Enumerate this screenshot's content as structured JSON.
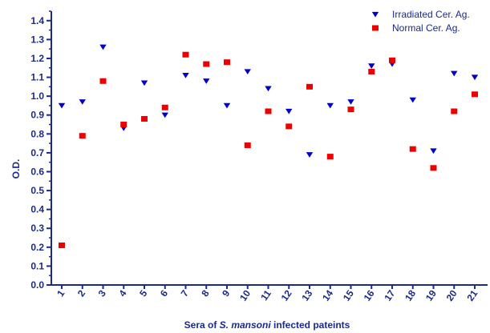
{
  "chart_data": {
    "type": "scatter",
    "x": [
      "1",
      "2",
      "3",
      "4",
      "5",
      "6",
      "7",
      "8",
      "9",
      "10",
      "11",
      "12",
      "13",
      "14",
      "15",
      "16",
      "17",
      "18",
      "19",
      "20",
      "21"
    ],
    "ylabel": "O.D.",
    "xlabel_parts": [
      {
        "text": "Sera of ",
        "italic": false
      },
      {
        "text": "S. mansoni",
        "italic": true
      },
      {
        "text": " infected pateints",
        "italic": false
      }
    ],
    "ylim": [
      0,
      1.45
    ],
    "yticks": [
      "0.0",
      "0.1",
      "0.2",
      "0.3",
      "0.4",
      "0.5",
      "0.6",
      "0.7",
      "0.8",
      "0.9",
      "1.0",
      "1.1",
      "1.2",
      "1.3",
      "1.4"
    ],
    "grid": false,
    "legend_position": "top-right",
    "series": [
      {
        "name": "Irradiated Cer. Ag.",
        "marker": "triangle-down",
        "color": "#0000cc",
        "values": [
          0.95,
          0.97,
          1.26,
          0.83,
          1.07,
          0.9,
          1.11,
          1.08,
          0.95,
          1.13,
          1.04,
          0.92,
          0.69,
          0.95,
          0.97,
          1.16,
          1.17,
          0.98,
          0.71,
          1.12,
          1.1
        ]
      },
      {
        "name": "Normal Cer. Ag.",
        "marker": "square",
        "color": "#ee0000",
        "values": [
          0.21,
          0.79,
          1.08,
          0.85,
          0.88,
          0.94,
          1.22,
          1.17,
          1.18,
          0.74,
          0.92,
          0.84,
          1.05,
          0.68,
          0.93,
          1.13,
          1.19,
          0.72,
          0.62,
          0.92,
          1.01
        ]
      }
    ]
  }
}
